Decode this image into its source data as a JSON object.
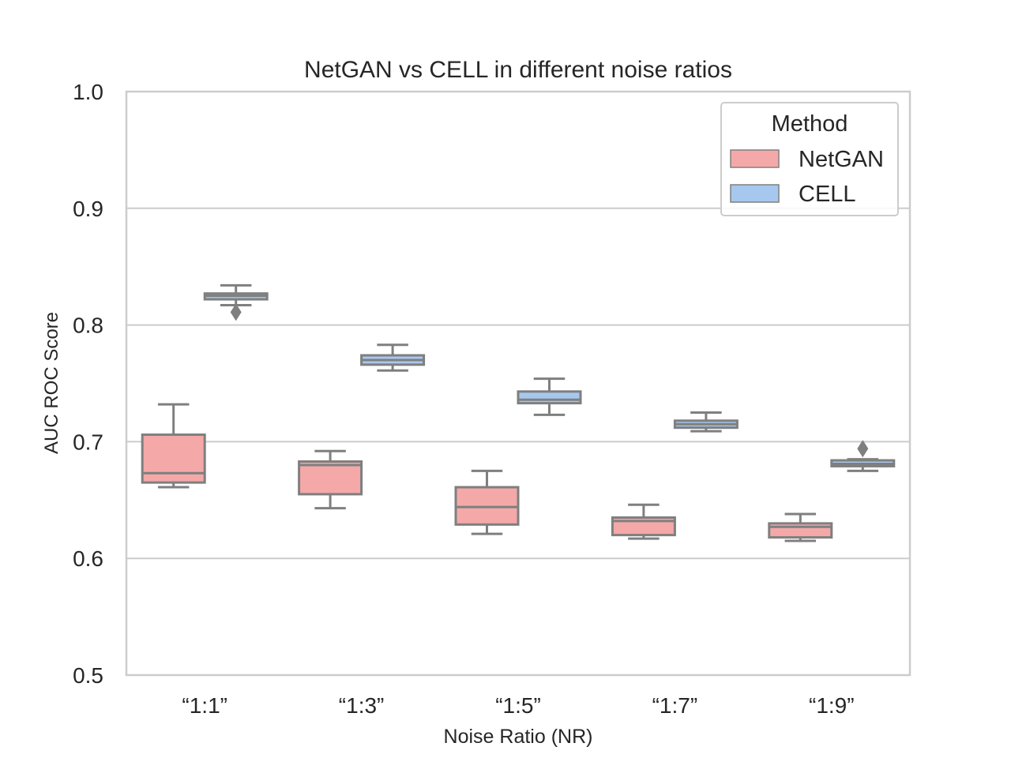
{
  "chart_data": {
    "type": "box",
    "title": "NetGAN vs CELL in different noise ratios",
    "xlabel": "Noise Ratio (NR)",
    "ylabel": "AUC ROC Score",
    "ylim": [
      0.5,
      1.0
    ],
    "yticks": [
      0.5,
      0.6,
      0.7,
      0.8,
      0.9,
      1.0
    ],
    "ytick_labels": [
      "0.5",
      "0.6",
      "0.7",
      "0.8",
      "0.9",
      "1.0"
    ],
    "grid": "horizontal",
    "legend": {
      "title": "Method",
      "placement": "top-right"
    },
    "categories": [
      "“1:1”",
      "“1:3”",
      "“1:5”",
      "“1:7”",
      "“1:9”"
    ],
    "series": [
      {
        "name": "NetGAN",
        "color": "#f4a9a8",
        "boxes": [
          {
            "whislo": 0.661,
            "q1": 0.665,
            "med": 0.673,
            "q3": 0.706,
            "whishi": 0.732,
            "fliers": []
          },
          {
            "whislo": 0.643,
            "q1": 0.655,
            "med": 0.68,
            "q3": 0.683,
            "whishi": 0.692,
            "fliers": []
          },
          {
            "whislo": 0.621,
            "q1": 0.629,
            "med": 0.644,
            "q3": 0.661,
            "whishi": 0.675,
            "fliers": []
          },
          {
            "whislo": 0.617,
            "q1": 0.62,
            "med": 0.632,
            "q3": 0.635,
            "whishi": 0.646,
            "fliers": []
          },
          {
            "whislo": 0.615,
            "q1": 0.618,
            "med": 0.627,
            "q3": 0.63,
            "whishi": 0.638,
            "fliers": []
          }
        ]
      },
      {
        "name": "CELL",
        "color": "#a7c8ee",
        "boxes": [
          {
            "whislo": 0.817,
            "q1": 0.822,
            "med": 0.825,
            "q3": 0.827,
            "whishi": 0.834,
            "fliers": [
              0.811
            ]
          },
          {
            "whislo": 0.761,
            "q1": 0.766,
            "med": 0.77,
            "q3": 0.774,
            "whishi": 0.783,
            "fliers": []
          },
          {
            "whislo": 0.723,
            "q1": 0.733,
            "med": 0.736,
            "q3": 0.743,
            "whishi": 0.754,
            "fliers": []
          },
          {
            "whislo": 0.709,
            "q1": 0.712,
            "med": 0.715,
            "q3": 0.718,
            "whishi": 0.725,
            "fliers": []
          },
          {
            "whislo": 0.675,
            "q1": 0.679,
            "med": 0.681,
            "q3": 0.684,
            "whishi": 0.685,
            "fliers": [
              0.694
            ]
          }
        ]
      }
    ]
  }
}
